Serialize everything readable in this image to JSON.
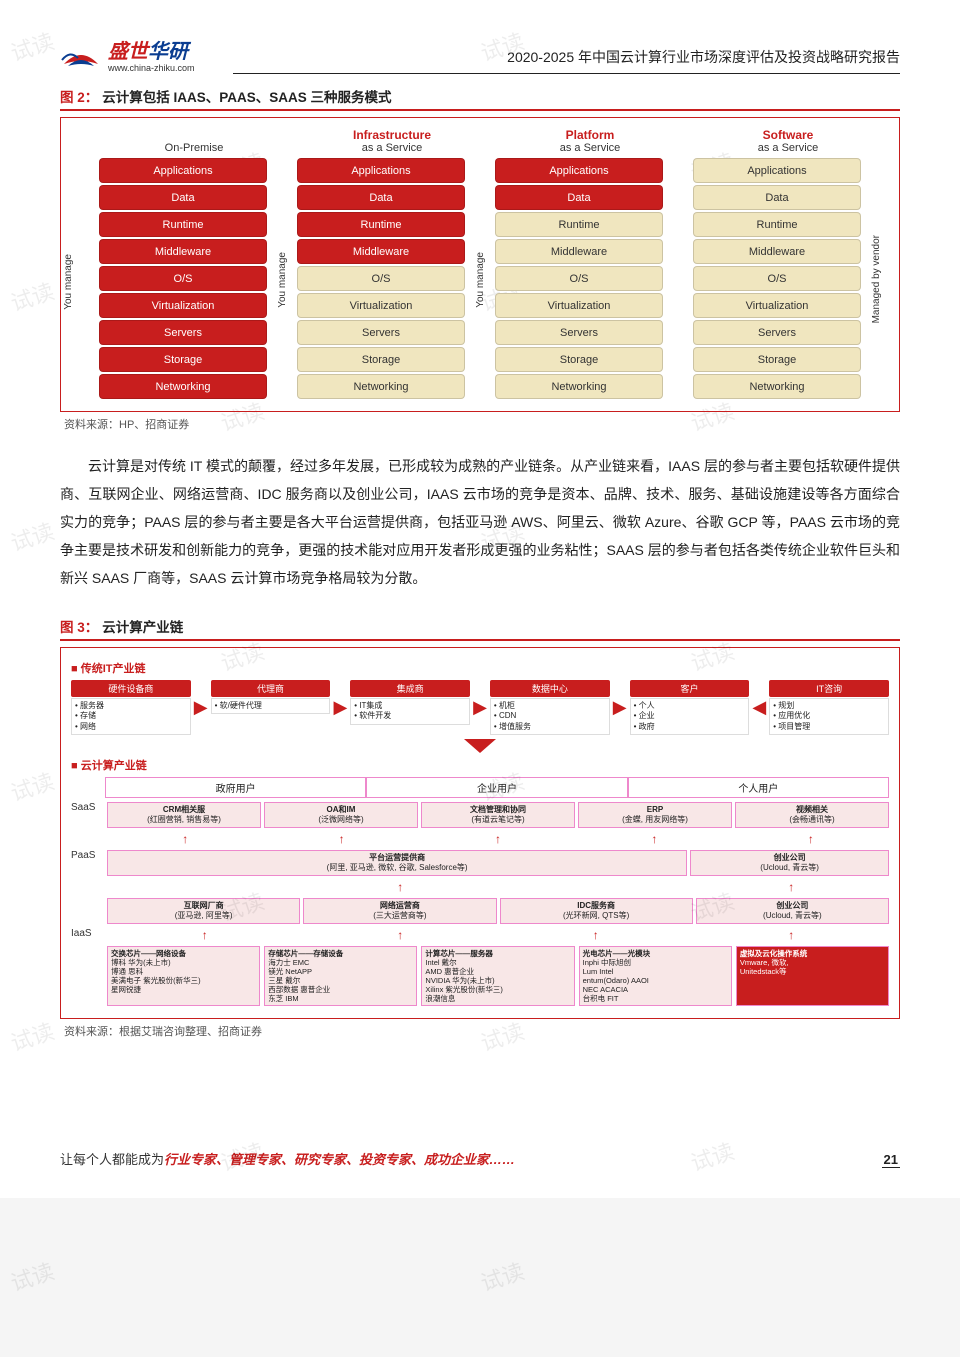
{
  "watermark": "试读",
  "logo": {
    "cn_a": "盛世",
    "cn_b": "华研",
    "url": "www.china-zhiku.com"
  },
  "doc_title": "2020-2025 年中国云计算行业市场深度评估及投资战略研究报告",
  "fig2": {
    "caption_num": "图 2：",
    "caption": "云计算包括 IAAS、PAAS、SAAS 三种服务模式",
    "columns": [
      {
        "h1": "",
        "h2": "On-Premise",
        "red_count": 9
      },
      {
        "h1": "Infrastructure",
        "h2": "as a Service",
        "red_count": 4
      },
      {
        "h1": "Platform",
        "h2": "as a Service",
        "red_count": 2
      },
      {
        "h1": "Software",
        "h2": "as a Service",
        "red_count": 0
      }
    ],
    "layers": [
      "Applications",
      "Data",
      "Runtime",
      "Middleware",
      "O/S",
      "Virtualization",
      "Servers",
      "Storage",
      "Networking"
    ],
    "you_manage": "You manage",
    "vendor_manage": "Managed by vendor",
    "source": "资料来源：HP、招商证券",
    "colors": {
      "red": "#c81e1e",
      "yellow": "#f0e6bf",
      "border": "#c81e1e"
    }
  },
  "paragraph": "云计算是对传统 IT 模式的颠覆，经过多年发展，已形成较为成熟的产业链条。从产业链来看，IAAS 层的参与者主要包括软硬件提供商、互联网企业、网络运营商、IDC 服务商以及创业公司，IAAS 云市场的竞争是资本、品牌、技术、服务、基础设施建设等各方面综合实力的竞争；PAAS 层的参与者主要是各大平台运营提供商，包括亚马逊 AWS、阿里云、微软 Azure、谷歌 GCP 等，PAAS 云市场的竞争主要是技术研发和创新能力的竞争，更强的技术能对应用开发者形成更强的业务粘性；SAAS 层的参与者包括各类传统企业软件巨头和新兴 SAAS 厂商等，SAAS 云计算市场竞争格局较为分散。",
  "fig3": {
    "caption_num": "图 3：",
    "caption": "云计算产业链",
    "sec1_title": "■ 传统IT产业链",
    "traditional": [
      {
        "head": "硬件设备商",
        "body": "• 服务器\n• 存储\n• 网络"
      },
      {
        "head": "代理商",
        "body": "• 软/硬件代理"
      },
      {
        "head": "集成商",
        "body": "• IT集成\n• 软件开发"
      },
      {
        "head": "数据中心",
        "body": "• 机柜\n• CDN\n• 增值服务"
      },
      {
        "head": "客户",
        "body": "• 个人\n• 企业\n• 政府"
      },
      {
        "head": "IT咨询",
        "body": "• 规划\n• 应用优化\n• 项目管理"
      }
    ],
    "sec2_title": "■ 云计算产业链",
    "users": [
      "政府用户",
      "企业用户",
      "个人用户"
    ],
    "saas_label": "SaaS",
    "saas_nodes": [
      {
        "t": "CRM相关服",
        "s": "(红圈营销, 销售易等)"
      },
      {
        "t": "OA和IM",
        "s": "(泛微网络等)"
      },
      {
        "t": "文档管理和协同",
        "s": "(有道云笔记等)"
      },
      {
        "t": "ERP",
        "s": "(金蝶, 用友网络等)"
      },
      {
        "t": "视频相关",
        "s": "(会畅通讯等)"
      }
    ],
    "paas_label": "PaaS",
    "paas_nodes": [
      {
        "t": "平台运营提供商",
        "s": "(阿里, 亚马逊, 微软, 谷歌, Salesforce等)"
      },
      {
        "t": "创业公司",
        "s": "(Ucloud, 青云等)"
      }
    ],
    "iaas_label": "IaaS",
    "iaas_top": [
      {
        "t": "互联网厂商",
        "s": "(亚马逊, 阿里等)"
      },
      {
        "t": "网络运营商",
        "s": "(三大运营商等)"
      },
      {
        "t": "IDC服务商",
        "s": "(光环新网, QTS等)"
      },
      {
        "t": "创业公司",
        "s": "(Ucloud, 青云等)"
      }
    ],
    "iaas_bottom": [
      {
        "t": "交换芯片——网络设备",
        "s": "博科  华为(未上市)\n博通  思科\n美满电子  紫光股份(新华三)\n  星网锐捷"
      },
      {
        "t": "存储芯片——存储设备",
        "s": "海力士  EMC\n镁光  NetAPP\n三星  戴尔\n西部数据  惠普企业\n东芝  IBM"
      },
      {
        "t": "计算芯片——服务器",
        "s": "Intel  戴尔\nAMD  惠普企业\nNVIDIA  华为(未上市)\nXilinx  紫光股份(新华三)\n  浪潮信息"
      },
      {
        "t": "光电芯片——光模块",
        "s": "Inphi  中际旭创\nLum  Intel\nentum(Odaro)  AAOI\nNEC  ACACIA\n台积电  FIT"
      },
      {
        "t": "虚拟及云化操作系统",
        "s": "Vmware, 微软,\nUnitedstack等",
        "dark": true
      }
    ],
    "source": "资料来源：根据艾瑞咨询整理、招商证券"
  },
  "footer": {
    "slogan_a": "让每个人都能成为",
    "slogan_b": "行业专家、管理专家、研究专家、投资专家、成功企业家……",
    "page": "21"
  }
}
